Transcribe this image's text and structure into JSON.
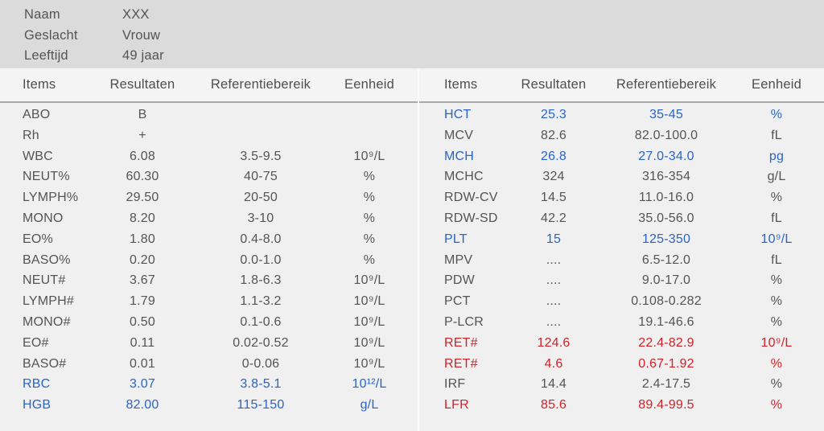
{
  "patient": {
    "fields": [
      {
        "label": "Naam",
        "value": "XXX"
      },
      {
        "label": "Geslacht",
        "value": "Vrouw"
      },
      {
        "label": "Leeftijd",
        "value": "49 jaar"
      }
    ]
  },
  "columns": [
    "Items",
    "Resultaten",
    "Referentiebereik",
    "Eenheid"
  ],
  "tables": [
    {
      "rows": [
        {
          "item": "ABO",
          "result": "B",
          "ref": "",
          "unit": "",
          "flag": "none"
        },
        {
          "item": "Rh",
          "result": "+",
          "ref": "",
          "unit": "",
          "flag": "none"
        },
        {
          "item": "WBC",
          "result": "6.08",
          "ref": "3.5-9.5",
          "unit": "10⁹/L",
          "flag": "none"
        },
        {
          "item": "NEUT%",
          "result": "60.30",
          "ref": "40-75",
          "unit": "%",
          "flag": "none"
        },
        {
          "item": "LYMPH%",
          "result": "29.50",
          "ref": "20-50",
          "unit": "%",
          "flag": "none"
        },
        {
          "item": "MONO",
          "result": "8.20",
          "ref": "3-10",
          "unit": "%",
          "flag": "none"
        },
        {
          "item": "EO%",
          "result": "1.80",
          "ref": "0.4-8.0",
          "unit": "%",
          "flag": "none"
        },
        {
          "item": "BASO%",
          "result": "0.20",
          "ref": "0.0-1.0",
          "unit": "%",
          "flag": "none"
        },
        {
          "item": "NEUT#",
          "result": "3.67",
          "ref": "1.8-6.3",
          "unit": "10⁹/L",
          "flag": "none"
        },
        {
          "item": "LYMPH#",
          "result": "1.79",
          "ref": "1.1-3.2",
          "unit": "10⁹/L",
          "flag": "none"
        },
        {
          "item": "MONO#",
          "result": "0.50",
          "ref": "0.1-0.6",
          "unit": "10⁹/L",
          "flag": "none"
        },
        {
          "item": "EO#",
          "result": "0.11",
          "ref": "0.02-0.52",
          "unit": "10⁹/L",
          "flag": "none"
        },
        {
          "item": "BASO#",
          "result": "0.01",
          "ref": "0-0.06",
          "unit": "10⁹/L",
          "flag": "none"
        },
        {
          "item": "RBC",
          "result": "3.07",
          "ref": "3.8-5.1",
          "unit": "10¹²/L",
          "flag": "blue"
        },
        {
          "item": "HGB",
          "result": "82.00",
          "ref": "115-150",
          "unit": "g/L",
          "flag": "blue"
        }
      ]
    },
    {
      "rows": [
        {
          "item": "HCT",
          "result": "25.3",
          "ref": "35-45",
          "unit": "%",
          "flag": "blue"
        },
        {
          "item": "MCV",
          "result": "82.6",
          "ref": "82.0-100.0",
          "unit": "fL",
          "flag": "none"
        },
        {
          "item": "MCH",
          "result": "26.8",
          "ref": "27.0-34.0",
          "unit": "pg",
          "flag": "blue"
        },
        {
          "item": "MCHC",
          "result": "324",
          "ref": "316-354",
          "unit": "g/L",
          "flag": "none"
        },
        {
          "item": "RDW-CV",
          "result": "14.5",
          "ref": "11.0-16.0",
          "unit": "%",
          "flag": "none"
        },
        {
          "item": "RDW-SD",
          "result": "42.2",
          "ref": "35.0-56.0",
          "unit": "fL",
          "flag": "none"
        },
        {
          "item": "PLT",
          "result": "15",
          "ref": "125-350",
          "unit": "10⁹/L",
          "flag": "blue"
        },
        {
          "item": "MPV",
          "result": "....",
          "ref": "6.5-12.0",
          "unit": "fL",
          "flag": "none"
        },
        {
          "item": "PDW",
          "result": "....",
          "ref": "9.0-17.0",
          "unit": "%",
          "flag": "none"
        },
        {
          "item": "PCT",
          "result": "....",
          "ref": "0.108-0.282",
          "unit": "%",
          "flag": "none"
        },
        {
          "item": "P-LCR",
          "result": "....",
          "ref": "19.1-46.6",
          "unit": "%",
          "flag": "none"
        },
        {
          "item": "RET#",
          "result": "124.6",
          "ref": "22.4-82.9",
          "unit": "10⁹/L",
          "flag": "red"
        },
        {
          "item": "RET#",
          "result": "4.6",
          "ref": "0.67-1.92",
          "unit": "%",
          "flag": "red"
        },
        {
          "item": "IRF",
          "result": "14.4",
          "ref": "2.4-17.5",
          "unit": "%",
          "flag": "none"
        },
        {
          "item": "LFR",
          "result": "85.6",
          "ref": "89.4-99.5",
          "unit": "%",
          "flag": "red"
        }
      ]
    }
  ],
  "colors": {
    "abnormal_blue": "#2a64c5",
    "abnormal_red": "#d2222a",
    "normal_text": "#545456",
    "patient_block_bg": "#dbdbdb",
    "header_row_bg": "#f4f4f4",
    "body_bg": "#f0f0f0"
  }
}
